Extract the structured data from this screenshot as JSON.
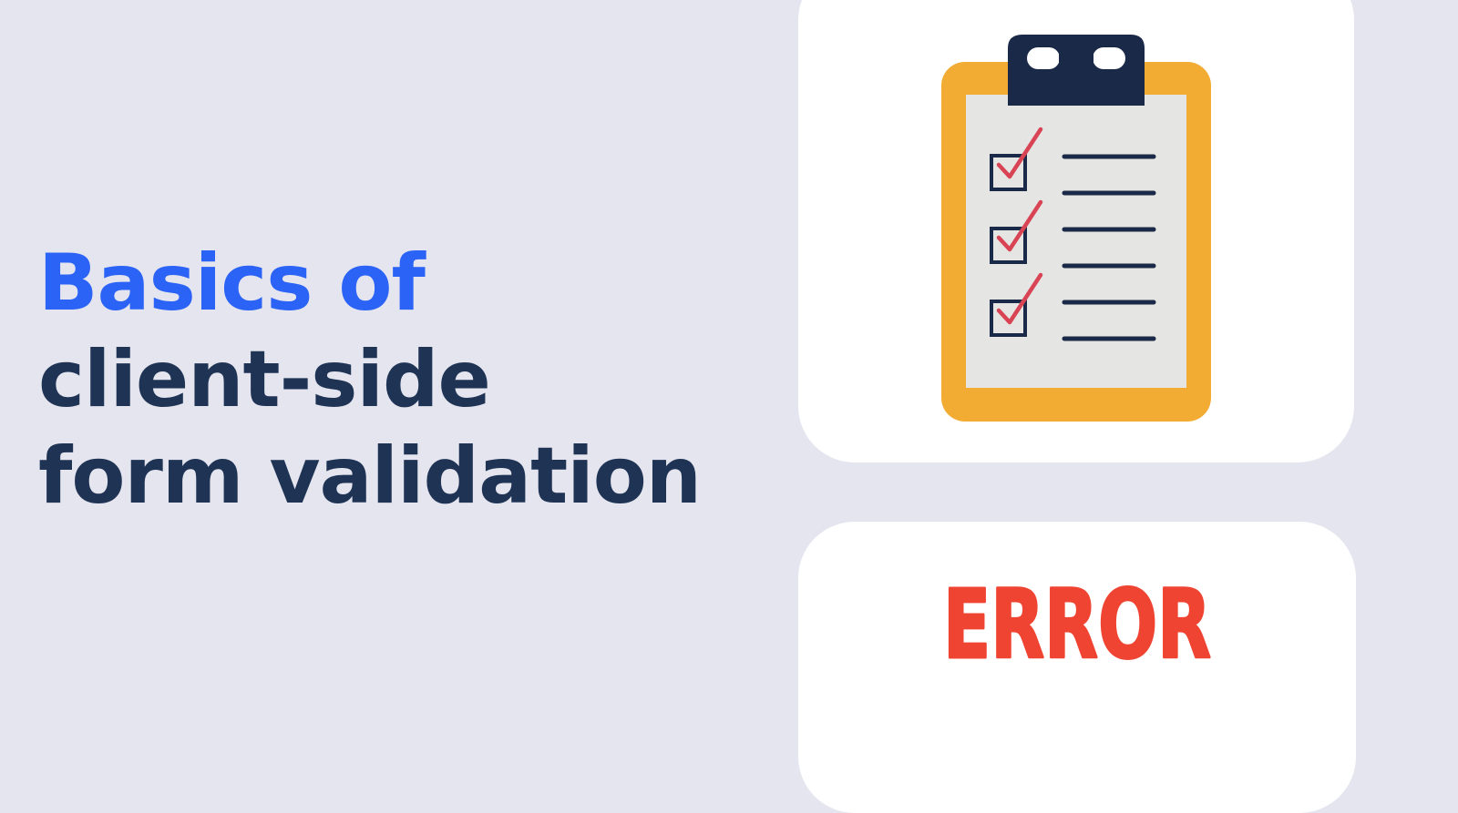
{
  "headline": {
    "line1": "Basics of",
    "line2": "client-side",
    "line3": "form validation"
  },
  "illustration": {
    "clipboard_icon": "clipboard-checklist-icon",
    "error_stamp_text": "ERROR",
    "checklist_rows": 3
  },
  "colors": {
    "background": "#e5e5ef",
    "card": "#ffffff",
    "headline_dark": "#1f3354",
    "headline_accent": "#2b63f6",
    "clipboard_frame": "#f2ac33",
    "clipboard_paper": "#e5e6e4",
    "clipboard_clip": "#1b2948",
    "checkmark": "#d94455",
    "error": "#f04432"
  }
}
